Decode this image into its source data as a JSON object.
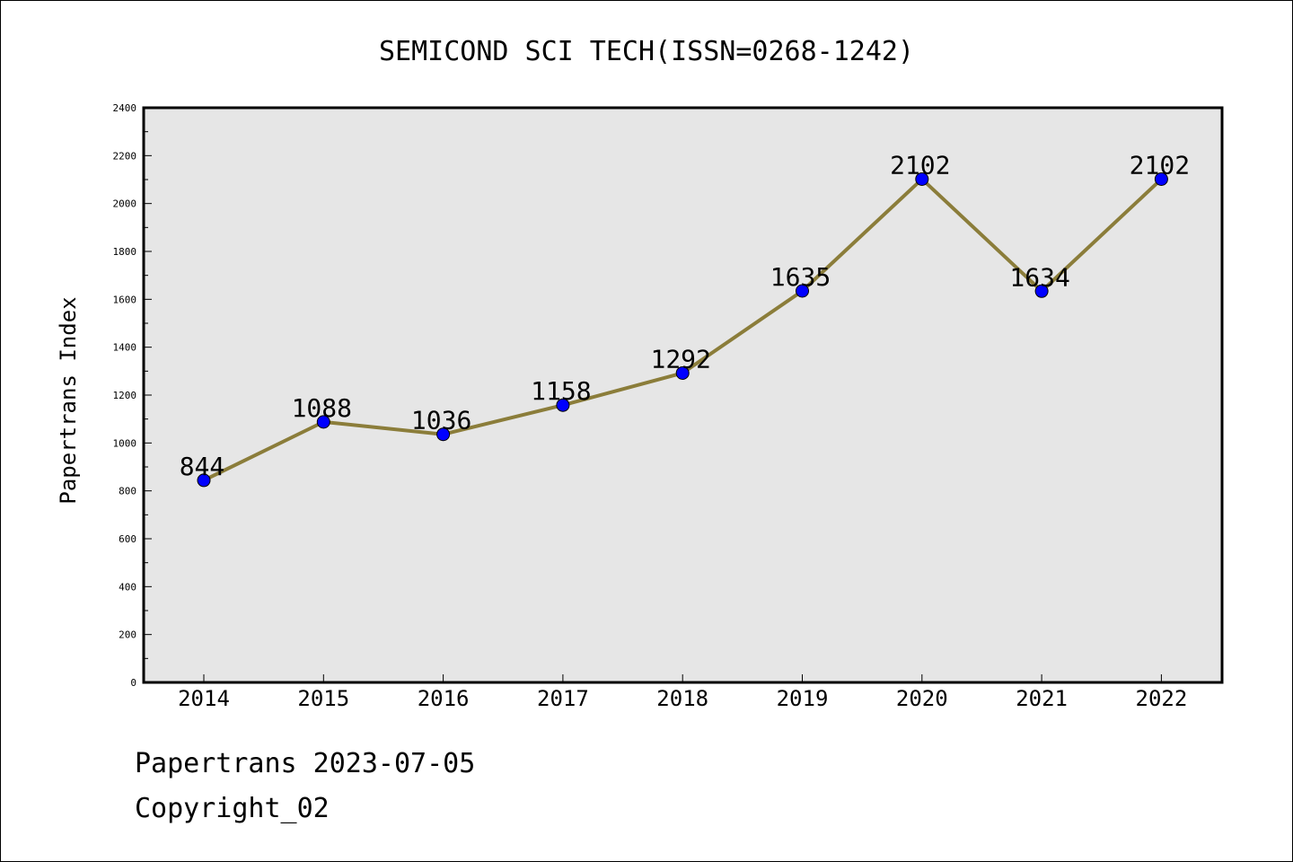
{
  "chart_data": {
    "type": "line",
    "title": "SEMICOND SCI TECH(ISSN=0268-1242)",
    "xlabel": "",
    "ylabel": "Papertrans Index",
    "categories": [
      "2014",
      "2015",
      "2016",
      "2017",
      "2018",
      "2019",
      "2020",
      "2021",
      "2022"
    ],
    "series": [
      {
        "values": [
          844,
          1088,
          1036,
          1158,
          1292,
          1635,
          2102,
          1634,
          2102
        ]
      }
    ],
    "data_labels": [
      "844",
      "1088",
      "1036",
      "1158",
      "1292",
      "1635",
      "2102",
      "1634",
      "2102"
    ],
    "ylim": [
      0,
      2400
    ],
    "yticks": [
      "0",
      "200",
      "400",
      "600",
      "800",
      "1000",
      "1200",
      "1400",
      "1600",
      "1800",
      "2000",
      "2200",
      "2400"
    ],
    "grid": false,
    "colors": {
      "line": "#8b7d3a",
      "marker": "#0000ff",
      "plot_background": "#e6e6e6"
    }
  },
  "footer": {
    "line1": "Papertrans 2023-07-05",
    "line2": "Copyright_02"
  }
}
